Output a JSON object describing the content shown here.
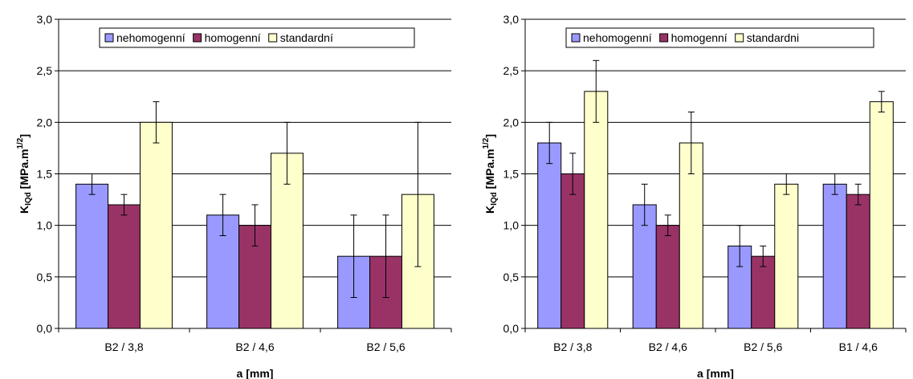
{
  "chart_data": [
    {
      "type": "bar",
      "categories": [
        "B2 / 3,8",
        "B2 / 4,6",
        "B2 / 5,6"
      ],
      "series": [
        {
          "name": "nehomogenní",
          "color": "#9999ff",
          "values": [
            1.4,
            1.1,
            0.7
          ],
          "errors": [
            0.1,
            0.2,
            0.4
          ]
        },
        {
          "name": "homogenní",
          "color": "#993366",
          "values": [
            1.2,
            1.0,
            0.7
          ],
          "errors": [
            0.1,
            0.2,
            0.4
          ]
        },
        {
          "name": "standardní",
          "color": "#ffffcc",
          "values": [
            2.0,
            1.7,
            1.3
          ],
          "errors": [
            0.2,
            0.3,
            0.7
          ]
        }
      ],
      "ylim": [
        0,
        3.0
      ],
      "ytick_labels": [
        "0,0",
        "0,5",
        "1,0",
        "1,5",
        "2,0",
        "2,5",
        "3,0"
      ],
      "xlabel": "a [mm]",
      "ylabel": {
        "main": "K",
        "sub": "IQd",
        "rest": " [MPa.m",
        "sup": "1/2",
        "close": "]"
      },
      "grid": true,
      "legend": "top"
    },
    {
      "type": "bar",
      "categories": [
        "B2 / 3,8",
        "B2 / 4,6",
        "B2 / 5,6",
        "B1 / 4,6"
      ],
      "series": [
        {
          "name": "nehomogenní",
          "color": "#9999ff",
          "values": [
            1.8,
            1.2,
            0.8,
            1.4
          ],
          "errors": [
            0.2,
            0.2,
            0.2,
            0.1
          ]
        },
        {
          "name": "homogenní",
          "color": "#993366",
          "values": [
            1.5,
            1.0,
            0.7,
            1.3
          ],
          "errors": [
            0.2,
            0.1,
            0.1,
            0.1
          ]
        },
        {
          "name": "standardni",
          "color": "#ffffcc",
          "values": [
            2.3,
            1.8,
            1.4,
            2.2
          ],
          "errors": [
            0.3,
            0.3,
            0.1,
            0.1
          ]
        }
      ],
      "ylim": [
        0,
        3.0
      ],
      "ytick_labels": [
        "0,0",
        "0,5",
        "1,0",
        "1,5",
        "2,0",
        "2,5",
        "3,0"
      ],
      "xlabel": "a [mm]",
      "ylabel": {
        "main": "K",
        "sub": "IQd",
        "rest": " [MPa.m",
        "sup": "1/2",
        "close": "]"
      },
      "grid": true,
      "legend": "top"
    }
  ]
}
